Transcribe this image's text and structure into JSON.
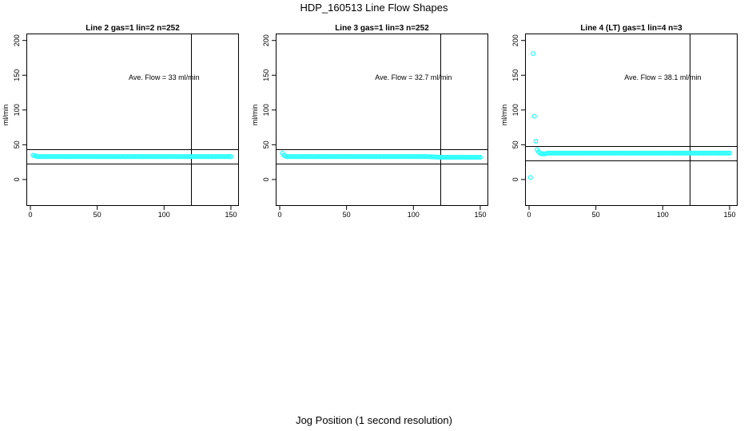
{
  "title": "HDP_160513  Line Flow Shapes",
  "xlabel": "Jog Position (1 second resolution)",
  "colors": {
    "points": "#33ffff",
    "lines": "#000000"
  },
  "chart_data": [
    {
      "type": "scatter",
      "title": "Line 2 gas=1 lin=2 n=252",
      "ylabel": "ml/min",
      "annotation": "Ave. Flow =  33  ml/min",
      "annotation_pos": [
        100,
        147
      ],
      "xlim": [
        -3,
        156
      ],
      "ylim": [
        -38,
        210
      ],
      "xticks": [
        0,
        50,
        100,
        150
      ],
      "xtick_labels": [
        "0",
        "50",
        "100",
        "150"
      ],
      "yticks": [
        0,
        50,
        100,
        150,
        200
      ],
      "ytick_labels": [
        "0",
        "50",
        "100",
        "150",
        "200"
      ],
      "hlines": [
        43,
        23
      ],
      "vline": 120,
      "series": [
        {
          "x": [
            2,
            3,
            4,
            5,
            6,
            8,
            10,
            15,
            20,
            30,
            40,
            50,
            60,
            70,
            80,
            90,
            100,
            110,
            120,
            130,
            140,
            150
          ],
          "y": [
            35,
            34,
            34,
            33,
            33,
            33,
            33,
            33,
            33,
            33,
            33,
            33,
            33,
            33,
            33,
            33,
            33,
            33,
            33,
            33,
            33,
            33
          ]
        }
      ]
    },
    {
      "type": "scatter",
      "title": "Line 3 gas=1 lin=3 n=252",
      "ylabel": "ml/min",
      "annotation": "Ave. Flow =  32.7  ml/min",
      "annotation_pos": [
        100,
        147
      ],
      "xlim": [
        -3,
        156
      ],
      "ylim": [
        -38,
        210
      ],
      "xticks": [
        0,
        50,
        100,
        150
      ],
      "xtick_labels": [
        "0",
        "50",
        "100",
        "150"
      ],
      "yticks": [
        0,
        50,
        100,
        150,
        200
      ],
      "ytick_labels": [
        "0",
        "50",
        "100",
        "150",
        "200"
      ],
      "hlines": [
        43,
        23
      ],
      "vline": 120,
      "series": [
        {
          "x": [
            2,
            3,
            4,
            5,
            6,
            8,
            10,
            15,
            20,
            30,
            40,
            50,
            60,
            70,
            80,
            90,
            100,
            110,
            120,
            130,
            140,
            150
          ],
          "y": [
            38,
            35,
            34,
            33,
            33,
            33,
            33,
            33,
            33,
            33,
            33,
            33,
            33,
            33,
            33,
            33,
            33,
            33,
            32,
            32,
            32,
            32
          ]
        }
      ]
    },
    {
      "type": "scatter",
      "title": "Line 4 (LT) gas=1 lin=4 n=3",
      "ylabel": "ml/min",
      "annotation": "Ave. Flow =  38.1  ml/min",
      "annotation_pos": [
        100,
        147
      ],
      "xlim": [
        -3,
        156
      ],
      "ylim": [
        -38,
        210
      ],
      "xticks": [
        0,
        50,
        100,
        150
      ],
      "xtick_labels": [
        "0",
        "50",
        "100",
        "150"
      ],
      "yticks": [
        0,
        50,
        100,
        150,
        200
      ],
      "ytick_labels": [
        "0",
        "50",
        "100",
        "150",
        "200"
      ],
      "hlines": [
        48,
        28
      ],
      "vline": 120,
      "series": [
        {
          "x": [
            1,
            3,
            4,
            5,
            6,
            7,
            8,
            9,
            10,
            11,
            12,
            14,
            16,
            18,
            20,
            30,
            40,
            50,
            60,
            70,
            80,
            90,
            100,
            110,
            120,
            130,
            140,
            150
          ],
          "y": [
            3,
            181,
            91,
            55,
            43,
            40,
            38,
            37,
            37,
            37,
            37,
            38,
            38,
            38,
            38,
            38,
            38,
            38,
            38,
            38,
            38,
            38,
            38,
            38,
            38,
            38,
            38,
            38
          ]
        }
      ]
    }
  ]
}
